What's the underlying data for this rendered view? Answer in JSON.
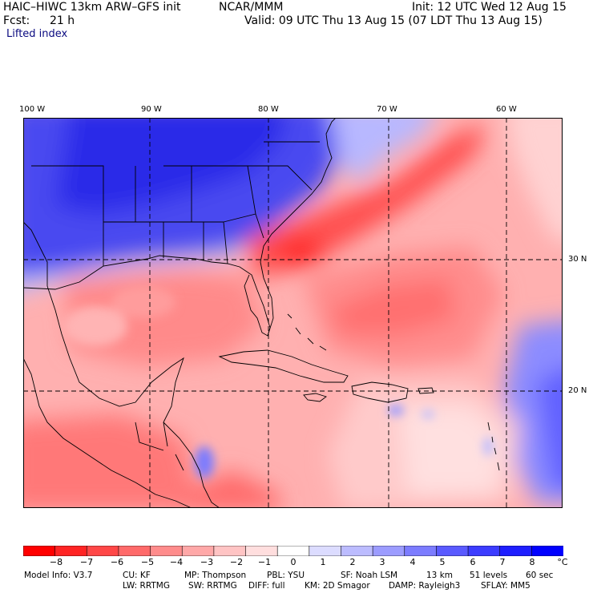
{
  "header": {
    "model": "HAIC–HIWC 13km ARW–GFS init",
    "org": "NCAR/MMM",
    "init": "Init: 12 UTC Wed 12 Aug 15",
    "fcst_label": "Fcst:",
    "fcst_value": "21 h",
    "valid": "Valid: 09 UTC Thu 13 Aug 15 (07 LDT Thu 13 Aug 15)",
    "field": "Lifted index"
  },
  "axes": {
    "top_labels": [
      "100 W",
      "90 W",
      "80 W",
      "70 W",
      "60 W"
    ],
    "right_labels": [
      "30 N",
      "20 N"
    ]
  },
  "colorbar": {
    "labels": [
      "−8",
      "−7",
      "−6",
      "−5",
      "−4",
      "−3",
      "−2",
      "−1",
      "0",
      "1",
      "2",
      "3",
      "4",
      "5",
      "6",
      "7",
      "8"
    ],
    "unit": "°C",
    "colors": [
      "#ff0000",
      "#ff2424",
      "#ff4747",
      "#ff6a6a",
      "#ff8c8c",
      "#ffa8a8",
      "#ffc4c4",
      "#ffdede",
      "#ffffff",
      "#dcdcff",
      "#bcbcff",
      "#9c9cff",
      "#7c7cff",
      "#5a5aff",
      "#3c3cff",
      "#1e1eff",
      "#0000ff"
    ]
  },
  "model_info": {
    "line1": [
      "Model Info: V3.7",
      "CU: KF",
      "MP: Thompson",
      "PBL: YSU",
      "SF: Noah LSM",
      "13 km",
      "51 levels",
      "60 sec"
    ],
    "line2": [
      "LW: RRTMG",
      "SW: RRTMG",
      "DIFF: full",
      "KM: 2D Smagor",
      "DAMP: Rayleigh3",
      "SFLAY: MM5"
    ]
  },
  "map": {
    "region": "Gulf of Mexico, Caribbean and western Atlantic",
    "field_colors": {
      "strong_neg": "#ff4040",
      "mid_neg": "#ff8080",
      "weak_neg": "#ffc0c0",
      "neutral": "#fff0f0",
      "pos": "#9c9cff",
      "strong_pos": "#3c3cff"
    }
  }
}
